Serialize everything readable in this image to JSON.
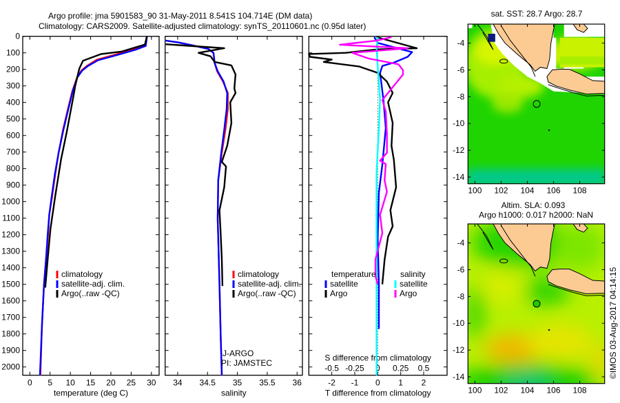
{
  "title": {
    "line1": "Argo profile: jma 5901583_90 31-May-2011 8.541S 104.714E (DM data)",
    "line2": "Climatology: CARS2009. Satellite-adjusted climatology: synTS_20110601.nc (0.95d later)"
  },
  "depth_axis": {
    "ylim": [
      0,
      2050
    ],
    "ticks": [
      0,
      100,
      200,
      300,
      400,
      500,
      600,
      700,
      800,
      900,
      1000,
      1100,
      1200,
      1300,
      1400,
      1500,
      1600,
      1700,
      1800,
      1900,
      2000
    ]
  },
  "chart_data": [
    {
      "type": "line",
      "xlabel": "temperature (deg C)",
      "xlim": [
        -1.75,
        31.9
      ],
      "xticks": [
        0,
        5,
        10,
        15,
        20,
        25,
        30
      ],
      "legend": [
        "climatology",
        "satellite-adj. clim.",
        "Argo(..raw -QC)"
      ],
      "series": [
        {
          "name": "climatology",
          "color": "#ff0000",
          "points": [
            [
              28.8,
              0
            ],
            [
              28.7,
              30
            ],
            [
              28.4,
              58
            ],
            [
              25.6,
              79
            ],
            [
              21.6,
              107
            ],
            [
              16.5,
              142
            ],
            [
              14.2,
              177
            ],
            [
              12.8,
              205
            ],
            [
              11.8,
              240
            ],
            [
              10.5,
              330
            ],
            [
              9.4,
              440
            ],
            [
              8.2,
              565
            ],
            [
              7.1,
              704
            ],
            [
              6.3,
              829
            ],
            [
              5.5,
              968
            ],
            [
              4.8,
              1079
            ],
            [
              4.5,
              1200
            ],
            [
              4.0,
              1350
            ],
            [
              3.5,
              1500
            ],
            [
              3.0,
              1750
            ],
            [
              2.6,
              2050
            ]
          ]
        },
        {
          "name": "satellite-adj. clim.",
          "color": "#0000ff",
          "points": [
            [
              28.9,
              0
            ],
            [
              28.6,
              58
            ],
            [
              26.0,
              82
            ],
            [
              22.0,
              110
            ],
            [
              16.8,
              145
            ],
            [
              14.3,
              180
            ],
            [
              12.9,
              208
            ],
            [
              11.7,
              250
            ],
            [
              10.6,
              330
            ],
            [
              9.5,
              440
            ],
            [
              8.3,
              565
            ],
            [
              7.1,
              704
            ],
            [
              6.2,
              829
            ],
            [
              5.4,
              968
            ],
            [
              4.8,
              1079
            ],
            [
              4.4,
              1200
            ],
            [
              4.0,
              1350
            ],
            [
              3.5,
              1500
            ],
            [
              3.0,
              1750
            ],
            [
              2.5,
              2050
            ]
          ]
        },
        {
          "name": "Argo(..raw -QC)",
          "color": "#000000",
          "points": [
            [
              28.9,
              0
            ],
            [
              28.4,
              50
            ],
            [
              25.0,
              75
            ],
            [
              22.7,
              92
            ],
            [
              17.6,
              107
            ],
            [
              13.1,
              148
            ],
            [
              12.2,
              196
            ],
            [
              11.2,
              300
            ],
            [
              10.8,
              358
            ],
            [
              9.1,
              580
            ],
            [
              7.7,
              745
            ],
            [
              6.25,
              968
            ],
            [
              5.1,
              1163
            ],
            [
              4.4,
              1350
            ],
            [
              3.8,
              1520
            ]
          ]
        }
      ]
    },
    {
      "type": "line",
      "xlabel": "salinity",
      "xlim": [
        33.79,
        36.09
      ],
      "xticks": [
        34,
        34.5,
        35,
        35.5,
        36
      ],
      "legend": [
        "climatology",
        "satellite-adj. clim.",
        "Argo(..raw -QC)"
      ],
      "annotation": [
        "J-ARGO",
        "PI: JAMSTEC"
      ],
      "series": [
        {
          "name": "climatology",
          "color": "#ff0000",
          "points": [
            [
              33.8,
              26
            ],
            [
              34.01,
              37
            ],
            [
              34.24,
              54
            ],
            [
              34.51,
              76
            ],
            [
              34.6,
              100
            ],
            [
              34.62,
              162
            ],
            [
              34.66,
              211
            ],
            [
              34.76,
              274
            ],
            [
              34.84,
              343
            ],
            [
              34.84,
              440
            ],
            [
              34.8,
              565
            ],
            [
              34.74,
              704
            ],
            [
              34.68,
              870
            ],
            [
              34.67,
              1106
            ],
            [
              34.68,
              1218
            ],
            [
              34.7,
              1500
            ],
            [
              34.72,
              1800
            ],
            [
              34.74,
              2050
            ]
          ]
        },
        {
          "name": "satellite-adj. clim.",
          "color": "#0000ff",
          "points": [
            [
              33.8,
              26
            ],
            [
              34.01,
              37
            ],
            [
              34.24,
              54
            ],
            [
              34.51,
              76
            ],
            [
              34.6,
              100
            ],
            [
              34.62,
              162
            ],
            [
              34.67,
              211
            ],
            [
              34.77,
              274
            ],
            [
              34.83,
              343
            ],
            [
              34.82,
              440
            ],
            [
              34.78,
              565
            ],
            [
              34.73,
              704
            ],
            [
              34.68,
              870
            ],
            [
              34.67,
              1106
            ],
            [
              34.68,
              1218
            ],
            [
              34.7,
              1500
            ],
            [
              34.72,
              1800
            ],
            [
              34.74,
              2050
            ]
          ]
        },
        {
          "name": "Argo(..raw -QC)",
          "color": "#000000",
          "points": [
            [
              33.8,
              48
            ],
            [
              34.78,
              72
            ],
            [
              34.35,
              100
            ],
            [
              34.55,
              121
            ],
            [
              34.62,
              155
            ],
            [
              34.9,
              176
            ],
            [
              34.97,
              231
            ],
            [
              34.95,
              315
            ],
            [
              34.97,
              343
            ],
            [
              34.88,
              399
            ],
            [
              34.9,
              524
            ],
            [
              34.83,
              663
            ],
            [
              34.74,
              760
            ],
            [
              34.81,
              787
            ],
            [
              34.78,
              913
            ],
            [
              34.7,
              1052
            ],
            [
              34.72,
              1190
            ],
            [
              34.74,
              1350
            ],
            [
              34.75,
              1510
            ]
          ]
        }
      ]
    },
    {
      "type": "line",
      "xlabel": "T difference from climatology",
      "x2label": "S difference from climatology",
      "xlim": [
        -3,
        3.02
      ],
      "xticks": [
        -2,
        -1,
        0,
        1,
        2
      ],
      "x2ticks": [
        -0.5,
        -0.25,
        0,
        0.25,
        0.5
      ],
      "x2ticklabels": [
        "-0.5",
        "-0.25",
        "0",
        "0.25",
        "0.5"
      ],
      "legend_temperature": {
        "title": "temperature",
        "items": [
          "satellite",
          "Argo"
        ]
      },
      "legend_salinity": {
        "title": "salinity",
        "items": [
          "satellite",
          "Argo"
        ]
      },
      "series": [
        {
          "name": "T satellite",
          "color": "#0000ff",
          "points": [
            [
              -0.15,
              5
            ],
            [
              0,
              40
            ],
            [
              1.5,
              96
            ],
            [
              1.3,
              124
            ],
            [
              0.7,
              159
            ],
            [
              0.2,
              179
            ],
            [
              0.1,
              221
            ],
            [
              0.25,
              388
            ],
            [
              0.35,
              555
            ],
            [
              0.2,
              777
            ],
            [
              0.05,
              944
            ],
            [
              0,
              1221
            ],
            [
              0.05,
              1500
            ],
            [
              0.05,
              1770
            ]
          ]
        },
        {
          "name": "T Argo",
          "color": "#000000",
          "points": [
            [
              -0.05,
              5
            ],
            [
              1.7,
              72
            ],
            [
              0,
              79
            ],
            [
              -1.4,
              100
            ],
            [
              -3.0,
              107
            ],
            [
              -2.95,
              124
            ],
            [
              -2.0,
              141
            ],
            [
              -2.35,
              155
            ],
            [
              -0.8,
              183
            ],
            [
              0,
              221
            ],
            [
              0.4,
              274
            ],
            [
              0.65,
              343
            ],
            [
              0.45,
              399
            ],
            [
              0.65,
              524
            ],
            [
              0.6,
              663
            ],
            [
              0.7,
              746
            ],
            [
              0.8,
              913
            ],
            [
              0.55,
              1052
            ],
            [
              0.65,
              1149
            ],
            [
              0.45,
              1212
            ],
            [
              0.3,
              1350
            ],
            [
              0.2,
              1500
            ]
          ]
        },
        {
          "name": "S satellite",
          "color": "#00ffff",
          "points": [
            [
              0,
              5
            ],
            [
              -0.05,
              75
            ],
            [
              0,
              179
            ],
            [
              0.1,
              385
            ],
            [
              0.05,
              555
            ],
            [
              -0.05,
              829
            ],
            [
              -0.05,
              1221
            ],
            [
              -0.05,
              1600
            ],
            [
              -0.05,
              2050
            ]
          ]
        },
        {
          "name": "S Argo",
          "color": "#ff00ff",
          "points": [
            [
              0.6,
              5
            ],
            [
              -0.05,
              26
            ],
            [
              -1.65,
              51
            ],
            [
              1.3,
              72
            ],
            [
              -1.1,
              100
            ],
            [
              -0.4,
              134
            ],
            [
              0.9,
              169
            ],
            [
              1.1,
              204
            ],
            [
              1.1,
              231
            ],
            [
              0.65,
              308
            ],
            [
              0.2,
              385
            ],
            [
              0.35,
              454
            ],
            [
              0.4,
              593
            ],
            [
              0.4,
              704
            ],
            [
              0.1,
              752
            ],
            [
              0.35,
              773
            ],
            [
              0.3,
              871
            ],
            [
              0.4,
              940
            ],
            [
              0.1,
              1080
            ],
            [
              0.2,
              1190
            ],
            [
              -0.1,
              1350
            ],
            [
              -0.1,
              1450
            ],
            [
              0.0,
              1500
            ]
          ]
        }
      ]
    }
  ],
  "maps": {
    "lon_ticks": [
      100,
      102,
      104,
      106,
      108
    ],
    "lat_ticks": [
      -4,
      -6,
      -8,
      -10,
      -12,
      -14
    ],
    "float_position": {
      "lon": 104.714,
      "lat": -8.541
    },
    "sst": {
      "title": "sat. SST: 28.7 Argo: 28.7"
    },
    "sla": {
      "title1": "Altim. SLA: 0.093",
      "title2": "Argo h1000: 0.017 h2000: NaN"
    }
  },
  "footer": "©IMOS 03-Aug-2017 04:14:15"
}
